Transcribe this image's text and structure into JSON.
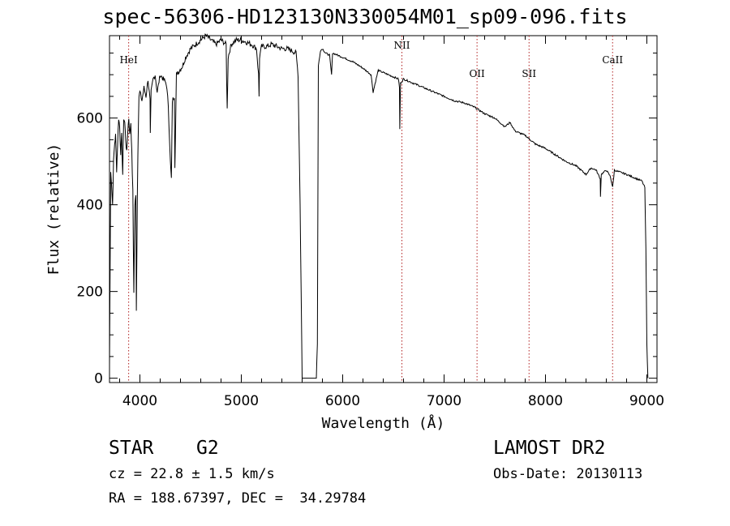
{
  "title": "spec-56306-HD123130N330054M01_sp09-096.fits",
  "info": {
    "class": "STAR",
    "subclass": "G2",
    "survey": "LAMOST DR2",
    "cz": "cz = 22.8 ± 1.5 km/s",
    "obs_date": "Obs-Date: 20130113",
    "radec": "RA = 188.67397, DEC =  34.29784"
  },
  "chart_data": {
    "type": "line",
    "title": "spec-56306-HD123130N330054M01_sp09-096.fits",
    "xlabel": "Wavelength (Å)",
    "ylabel": "Flux (relative)",
    "xlim": [
      3700,
      9100
    ],
    "ylim": [
      -10,
      790
    ],
    "xticks": [
      4000,
      5000,
      6000,
      7000,
      8000,
      9000
    ],
    "xtick_labels": [
      "4000",
      "5000",
      "6000",
      "7000",
      "8000",
      "9000"
    ],
    "yticks": [
      0,
      200,
      400,
      600
    ],
    "ytick_labels": [
      "0",
      "200",
      "400",
      "600"
    ],
    "line_markers": [
      {
        "label": "HeI",
        "x": 3889
      },
      {
        "label": "NII",
        "x": 6584
      },
      {
        "label": "OII",
        "x": 7325
      },
      {
        "label": "SII",
        "x": 7838
      },
      {
        "label": "CaII",
        "x": 8662
      }
    ],
    "series": [
      {
        "name": "flux",
        "x": [
          3700,
          3705,
          3712,
          3720,
          3730,
          3740,
          3750,
          3760,
          3770,
          3780,
          3790,
          3800,
          3810,
          3820,
          3830,
          3840,
          3850,
          3860,
          3870,
          3880,
          3890,
          3900,
          3910,
          3920,
          3930,
          3935,
          3940,
          3950,
          3960,
          3965,
          3970,
          3975,
          3980,
          3990,
          4000,
          4020,
          4040,
          4060,
          4080,
          4100,
          4102,
          4110,
          4130,
          4150,
          4170,
          4200,
          4230,
          4260,
          4280,
          4300,
          4310,
          4320,
          4340,
          4345,
          4360,
          4390,
          4420,
          4450,
          4500,
          4550,
          4600,
          4650,
          4700,
          4750,
          4800,
          4850,
          4855,
          4861,
          4870,
          4900,
          4950,
          5000,
          5050,
          5100,
          5150,
          5170,
          5175,
          5180,
          5200,
          5250,
          5300,
          5350,
          5400,
          5450,
          5500,
          5540,
          5560,
          5580,
          5590,
          5600,
          5620,
          5650,
          5700,
          5720,
          5730,
          5740,
          5750,
          5760,
          5780,
          5800,
          5830,
          5870,
          5890,
          5900,
          5950,
          6000,
          6100,
          6200,
          6280,
          6300,
          6350,
          6400,
          6450,
          6500,
          6550,
          6560,
          6563,
          6570,
          6600,
          6700,
          6800,
          6900,
          7000,
          7100,
          7200,
          7300,
          7400,
          7500,
          7600,
          7650,
          7700,
          7800,
          7900,
          8000,
          8100,
          8200,
          8300,
          8400,
          8450,
          8500,
          8540,
          8542,
          8550,
          8600,
          8640,
          8662,
          8680,
          8700,
          8800,
          8900,
          8950,
          8980,
          8990,
          9000,
          9010
        ],
        "y": [
          30,
          210,
          480,
          450,
          400,
          500,
          540,
          560,
          480,
          540,
          600,
          580,
          520,
          560,
          470,
          600,
          590,
          550,
          520,
          570,
          600,
          560,
          590,
          520,
          430,
          300,
          200,
          400,
          420,
          160,
          300,
          430,
          520,
          650,
          660,
          640,
          670,
          650,
          690,
          640,
          560,
          660,
          690,
          700,
          660,
          700,
          690,
          680,
          630,
          500,
          460,
          640,
          650,
          490,
          700,
          710,
          720,
          740,
          760,
          770,
          780,
          790,
          780,
          770,
          780,
          770,
          690,
          620,
          740,
          770,
          780,
          780,
          775,
          770,
          760,
          700,
          650,
          740,
          765,
          765,
          770,
          765,
          760,
          760,
          755,
          750,
          700,
          400,
          200,
          0,
          0,
          0,
          0,
          0,
          0,
          0,
          80,
          720,
          755,
          760,
          750,
          745,
          700,
          750,
          745,
          740,
          730,
          715,
          700,
          660,
          710,
          705,
          700,
          695,
          690,
          670,
          575,
          680,
          690,
          680,
          670,
          660,
          650,
          640,
          635,
          625,
          610,
          600,
          580,
          590,
          570,
          560,
          540,
          530,
          515,
          500,
          490,
          470,
          485,
          480,
          460,
          420,
          470,
          480,
          465,
          440,
          480,
          478,
          470,
          460,
          455,
          440,
          300,
          80,
          0
        ]
      }
    ]
  }
}
